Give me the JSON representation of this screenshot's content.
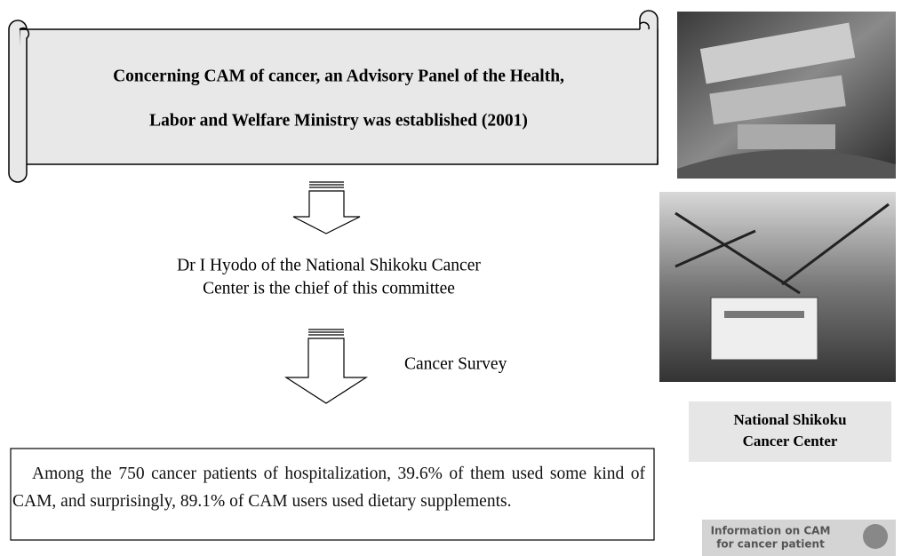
{
  "banner": {
    "lines": [
      "Concerning CAM of cancer, an Advisory Panel of the Health,",
      "Labor and Welfare Ministry was established (2001)"
    ]
  },
  "note": {
    "lines": [
      "Dr I Hyodo of the National Shikoku Cancer",
      "Center is the chief of this committee"
    ]
  },
  "arrow_label": "Cancer Survey",
  "finding": "Among the 750 cancer patients of hospitalization, 39.6% of them used some kind of CAM, and surprisingly, 89.1% of CAM users used dietary supplements.",
  "sidebar": {
    "caption_lines": [
      "National Shikoku",
      "Cancer Center"
    ],
    "logo_lines": [
      "Information on CAM",
      "for cancer patient"
    ]
  }
}
